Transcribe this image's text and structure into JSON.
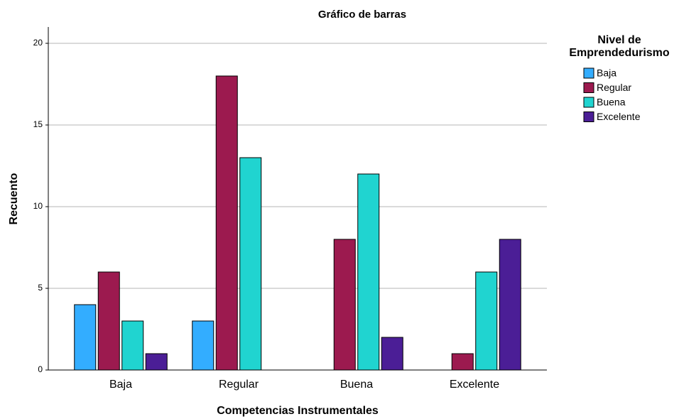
{
  "chart_data": {
    "type": "bar",
    "title": "Gráfico de barras",
    "x_label": "Competencias Instrumentales",
    "y_label": "Recuento",
    "legend_title": [
      "Nivel de",
      "Emprendedurismo"
    ],
    "categories": [
      "Baja",
      "Regular",
      "Buena",
      "Excelente"
    ],
    "series": [
      {
        "name": "Baja",
        "color": "#33adff",
        "values": [
          4,
          3,
          0,
          0
        ]
      },
      {
        "name": "Regular",
        "color": "#9c1a4f",
        "values": [
          6,
          18,
          8,
          1
        ]
      },
      {
        "name": "Buena",
        "color": "#20d4d0",
        "values": [
          3,
          13,
          12,
          6
        ]
      },
      {
        "name": "Excelente",
        "color": "#4b1e96",
        "values": [
          1,
          0,
          2,
          8
        ]
      }
    ],
    "ylim": [
      0,
      21
    ],
    "yticks": [
      0,
      5,
      10,
      15,
      20
    ],
    "grid": true,
    "legend": "right"
  }
}
